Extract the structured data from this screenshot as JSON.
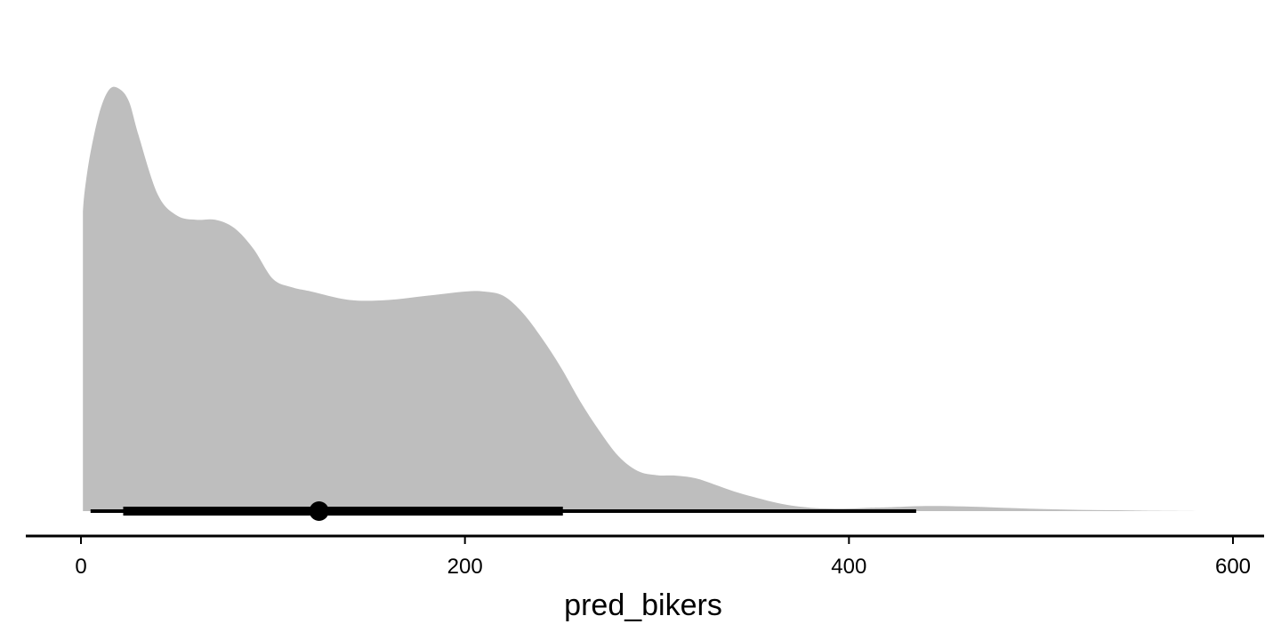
{
  "chart_data": {
    "type": "area",
    "title": "",
    "xlabel": "pred_bikers",
    "ylabel": "",
    "xlim": [
      -15,
      615
    ],
    "x_ticks": [
      0,
      200,
      400,
      600
    ],
    "x_tick_labels": [
      "0",
      "200",
      "400",
      "600"
    ],
    "grid": false,
    "legend": "none",
    "density": {
      "x": [
        1,
        2,
        5,
        10,
        15,
        20,
        25,
        30,
        40,
        50,
        60,
        70,
        80,
        90,
        100,
        110,
        120,
        140,
        160,
        180,
        200,
        210,
        220,
        230,
        240,
        250,
        260,
        270,
        280,
        290,
        300,
        310,
        320,
        330,
        340,
        350,
        360,
        370,
        380,
        390,
        400,
        410,
        420,
        440,
        460,
        480,
        500,
        520,
        540,
        560,
        585
      ],
      "y": [
        0.71,
        0.76,
        0.85,
        0.95,
        1.0,
        1.0,
        0.97,
        0.89,
        0.75,
        0.7,
        0.69,
        0.69,
        0.67,
        0.62,
        0.55,
        0.53,
        0.52,
        0.5,
        0.5,
        0.51,
        0.52,
        0.52,
        0.51,
        0.47,
        0.41,
        0.34,
        0.26,
        0.19,
        0.13,
        0.095,
        0.085,
        0.084,
        0.078,
        0.063,
        0.047,
        0.034,
        0.022,
        0.013,
        0.008,
        0.006,
        0.006,
        0.008,
        0.009,
        0.012,
        0.011,
        0.008,
        0.005,
        0.003,
        0.002,
        0.0008,
        0.0
      ],
      "fill": "#bebebe"
    },
    "point_interval": {
      "point": 124,
      "inner_interval": [
        22,
        251
      ],
      "outer_interval": [
        5,
        435
      ],
      "color": "#000000"
    }
  }
}
